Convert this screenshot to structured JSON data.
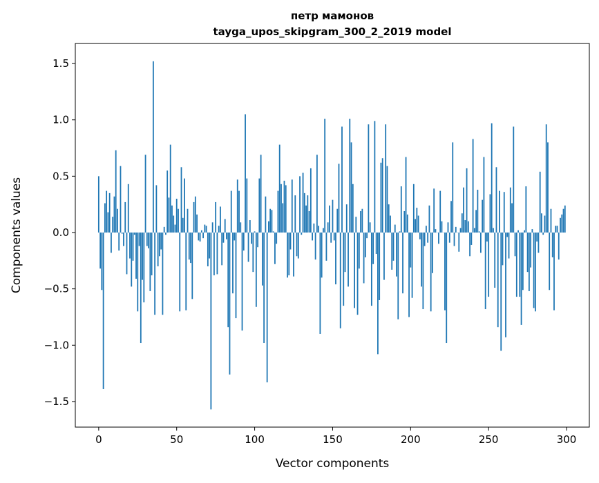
{
  "chart_data": {
    "type": "bar",
    "title": "петр мамонов",
    "subtitle": "tayga_upos_skipgram_300_2_2019 model",
    "xlabel": "Vector components",
    "ylabel": "Components values",
    "xlim": [
      -15,
      314.6
    ],
    "ylim": [
      -1.727,
      1.678
    ],
    "xticks": [
      0,
      50,
      100,
      150,
      200,
      250,
      300
    ],
    "xtick_labels": [
      "0",
      "50",
      "100",
      "150",
      "200",
      "250",
      "300"
    ],
    "yticks": [
      1.5,
      1.0,
      0.5,
      0.0,
      -0.5,
      -1.0,
      -1.5
    ],
    "ytick_labels": [
      "1.5",
      "1.0",
      "0.5",
      "0.0",
      "−0.5",
      "−1.0",
      "−1.5"
    ],
    "grid": false,
    "bar_color": "#1f77b4",
    "values": [
      0.5,
      -0.32,
      -0.51,
      -1.39,
      0.26,
      0.37,
      0.18,
      0.35,
      -0.18,
      0.14,
      0.32,
      0.73,
      0.21,
      -0.16,
      0.59,
      -0.01,
      -0.12,
      0.27,
      -0.37,
      0.43,
      -0.23,
      -0.48,
      -0.25,
      -0.02,
      -0.41,
      -0.7,
      -0.12,
      -0.98,
      -0.42,
      -0.62,
      0.69,
      -0.12,
      -0.14,
      -0.52,
      -0.38,
      1.52,
      -0.73,
      0.42,
      -0.3,
      -0.21,
      -0.15,
      -0.73,
      0.05,
      -0.02,
      0.55,
      0.31,
      0.78,
      0.24,
      0.15,
      0.07,
      0.3,
      0.21,
      -0.7,
      0.58,
      0.13,
      0.48,
      -0.69,
      0.21,
      -0.24,
      -0.27,
      -0.59,
      0.27,
      0.32,
      0.16,
      -0.07,
      -0.08,
      0.02,
      -0.05,
      0.07,
      0.06,
      -0.3,
      -0.23,
      -1.57,
      0.09,
      -0.38,
      0.27,
      -0.37,
      0.06,
      0.23,
      -0.29,
      -0.09,
      0.12,
      -0.06,
      -0.84,
      -1.26,
      0.37,
      -0.54,
      -0.07,
      -0.76,
      0.47,
      0.37,
      0.09,
      -0.87,
      -0.16,
      1.05,
      0.48,
      -0.26,
      0.11,
      -0.1,
      -0.35,
      0.01,
      -0.66,
      -0.13,
      0.48,
      0.69,
      -0.47,
      -0.98,
      0.32,
      -1.33,
      0.1,
      0.21,
      0.2,
      0.01,
      -0.28,
      -0.1,
      0.37,
      0.78,
      0.43,
      0.26,
      0.46,
      0.42,
      -0.4,
      -0.38,
      -0.15,
      0.47,
      -0.39,
      0.33,
      -0.21,
      -0.23,
      0.5,
      -0.02,
      0.53,
      0.35,
      0.24,
      0.33,
      0.19,
      0.57,
      -0.07,
      0.08,
      -0.24,
      0.69,
      0.06,
      -0.9,
      -0.4,
      0.04,
      1.01,
      -0.25,
      0.09,
      0.24,
      -0.09,
      0.29,
      -0.07,
      -0.46,
      0.21,
      0.61,
      -0.85,
      0.94,
      -0.65,
      -0.35,
      0.25,
      -0.48,
      1.01,
      0.8,
      0.43,
      -0.67,
      0.14,
      -0.73,
      -0.32,
      0.19,
      0.21,
      -0.45,
      -0.22,
      -0.05,
      0.96,
      0.09,
      -0.65,
      -0.28,
      0.99,
      -0.19,
      -1.08,
      -0.6,
      0.62,
      0.66,
      -0.42,
      0.96,
      0.59,
      0.25,
      0.15,
      -0.33,
      -0.25,
      0.07,
      -0.39,
      -0.77,
      0.01,
      0.41,
      -0.54,
      0.19,
      0.67,
      0.16,
      -0.75,
      -0.31,
      -0.58,
      0.43,
      0.12,
      0.22,
      0.15,
      -0.06,
      -0.48,
      -0.68,
      -0.12,
      0.06,
      -0.09,
      0.24,
      -0.7,
      -0.36,
      0.39,
      0.03,
      0.0,
      -0.1,
      0.37,
      0.1,
      0.0,
      -0.69,
      -0.98,
      0.09,
      -0.09,
      0.28,
      0.8,
      -0.12,
      0.05,
      0.0,
      -0.17,
      0.04,
      0.17,
      0.4,
      0.11,
      0.57,
      0.1,
      -0.21,
      -0.11,
      0.83,
      0.04,
      0.2,
      0.38,
      0.01,
      -0.18,
      0.29,
      0.67,
      -0.68,
      -0.08,
      -0.57,
      0.34,
      0.97,
      0.04,
      -0.49,
      0.58,
      -0.84,
      0.37,
      -1.05,
      -0.29,
      0.36,
      -0.93,
      -0.04,
      -0.23,
      0.4,
      0.26,
      0.94,
      -0.21,
      -0.57,
      0.02,
      -0.57,
      -0.82,
      -0.51,
      0.02,
      0.41,
      -0.35,
      -0.52,
      -0.31,
      0.03,
      -0.67,
      -0.7,
      -0.08,
      -0.18,
      0.54,
      0.17,
      -0.02,
      0.15,
      0.96,
      0.8,
      -0.51,
      0.21,
      -0.22,
      -0.69,
      0.06,
      0.06,
      -0.24,
      0.13,
      0.16,
      0.21,
      0.24
    ]
  }
}
